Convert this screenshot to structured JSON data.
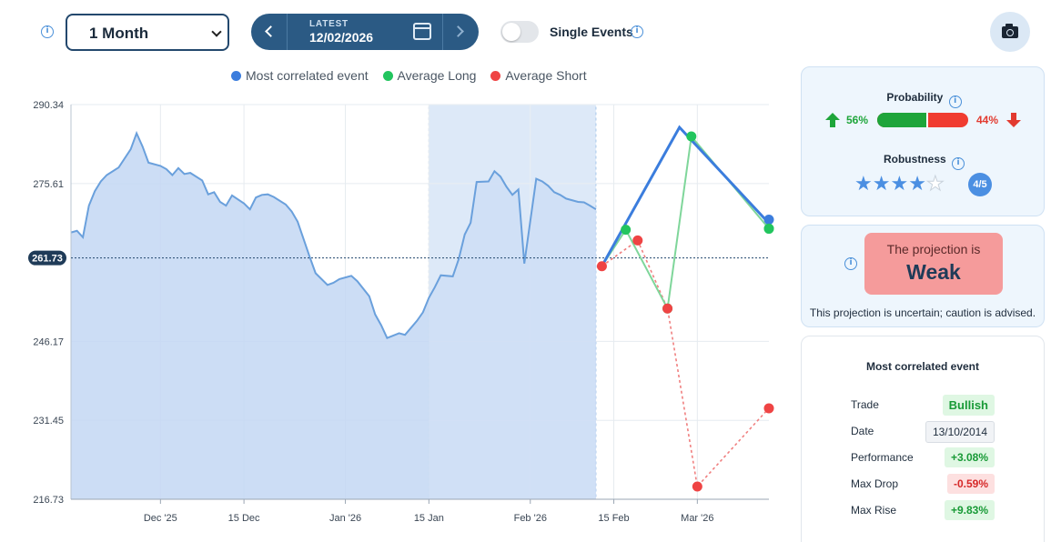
{
  "toolbar": {
    "period_value": "1 Month",
    "date_caption": "LATEST",
    "date_value": "12/02/2026",
    "single_events_label": "Single Events",
    "single_events_on": false
  },
  "legend": [
    {
      "label": "Most correlated event",
      "color": "#3b7ddd"
    },
    {
      "label": "Average Long",
      "color": "#22c55e"
    },
    {
      "label": "Average Short",
      "color": "#ef4444"
    }
  ],
  "chart_data": {
    "type": "line",
    "y_ticks": [
      "290.34",
      "275.61",
      "246.17",
      "231.45",
      "216.73"
    ],
    "y_tick_values": [
      290.34,
      275.61,
      246.17,
      231.45,
      216.73
    ],
    "ylim": [
      216.73,
      290.34
    ],
    "current_value": 261.73,
    "current_label": "261.73",
    "x_ticks": [
      "Dec '25",
      "15 Dec",
      "Jan '26",
      "15 Jan",
      "Feb '26",
      "15 Feb",
      "Mar '26"
    ],
    "x_tick_dates": [
      "2025-12-01",
      "2025-12-15",
      "2026-01-01",
      "2026-01-15",
      "2026-02-01",
      "2026-02-15",
      "2026-03-01"
    ],
    "highlight_range": [
      "2026-01-15",
      "2026-02-12"
    ],
    "grid": true,
    "history": {
      "name": "",
      "dates": [
        "2025-11-16",
        "2025-11-17",
        "2025-11-18",
        "2025-11-19",
        "2025-11-20",
        "2025-11-21",
        "2025-11-22",
        "2025-11-24",
        "2025-11-26",
        "2025-11-27",
        "2025-11-28",
        "2025-11-29",
        "2025-12-01",
        "2025-12-02",
        "2025-12-03",
        "2025-12-04",
        "2025-12-05",
        "2025-12-06",
        "2025-12-08",
        "2025-12-09",
        "2025-12-10",
        "2025-12-11",
        "2025-12-12",
        "2025-12-13",
        "2025-12-15",
        "2025-12-16",
        "2025-12-17",
        "2025-12-18",
        "2025-12-19",
        "2025-12-20",
        "2025-12-22",
        "2025-12-23",
        "2025-12-24",
        "2025-12-26",
        "2025-12-27",
        "2025-12-29",
        "2025-12-30",
        "2025-12-31",
        "2026-01-02",
        "2026-01-03",
        "2026-01-05",
        "2026-01-06",
        "2026-01-07",
        "2026-01-08",
        "2026-01-10",
        "2026-01-11",
        "2026-01-13",
        "2026-01-14",
        "2026-01-15",
        "2026-01-16",
        "2026-01-17",
        "2026-01-19",
        "2026-01-20",
        "2026-01-21",
        "2026-01-22",
        "2026-01-23",
        "2026-01-25",
        "2026-01-26",
        "2026-01-27",
        "2026-01-28",
        "2026-01-29",
        "2026-01-30",
        "2026-01-31",
        "2026-02-02",
        "2026-02-03",
        "2026-02-04",
        "2026-02-05",
        "2026-02-06",
        "2026-02-07",
        "2026-02-09",
        "2026-02-10",
        "2026-02-11",
        "2026-02-12"
      ],
      "values": [
        266.5,
        266.8,
        265.6,
        271.5,
        274.2,
        276.0,
        277.2,
        278.6,
        282.0,
        285.0,
        282.5,
        279.5,
        278.9,
        278.3,
        277.2,
        278.5,
        277.4,
        277.6,
        276.2,
        273.6,
        274.0,
        272.2,
        271.5,
        273.4,
        271.9,
        270.8,
        273.0,
        273.5,
        273.6,
        273.1,
        271.7,
        270.4,
        268.5,
        262.0,
        258.9,
        256.7,
        257.1,
        257.8,
        258.4,
        257.4,
        254.6,
        251.2,
        249.2,
        246.8,
        247.7,
        247.4,
        250.0,
        251.6,
        254.3,
        256.3,
        258.5,
        258.3,
        261.5,
        266.1,
        268.3,
        275.9,
        276.0,
        277.9,
        276.9,
        275.0,
        273.5,
        274.5,
        260.7,
        276.5,
        276.0,
        275.2,
        274.0,
        273.5,
        272.8,
        272.2,
        272.1,
        271.5,
        270.8
      ]
    },
    "projections": {
      "most_correlated": {
        "dates": [
          "2026-02-13",
          "2026-02-26",
          "2026-03-13"
        ],
        "values": [
          260.2,
          286.1,
          268.2
        ]
      },
      "average_long": {
        "dates": [
          "2026-02-13",
          "2026-02-17",
          "2026-02-24",
          "2026-02-28",
          "2026-03-13"
        ],
        "values": [
          260.2,
          267.0,
          252.3,
          284.4,
          267.2
        ]
      },
      "average_short": {
        "dates": [
          "2026-02-13",
          "2026-02-19",
          "2026-02-24",
          "2026-03-01",
          "2026-03-13"
        ],
        "values": [
          260.2,
          265.0,
          252.3,
          219.1,
          233.7
        ]
      }
    },
    "colors": {
      "area": "#c3d7f3",
      "highlight": "#d6e5f7",
      "history_line": "#6aa0dc",
      "most_correlated": "#3b7ddd",
      "long": "#22c55e",
      "short": "#ef4444"
    }
  },
  "probability": {
    "title": "Probability",
    "up_pct": "56%",
    "down_pct": "44%",
    "up_fraction": 0.56
  },
  "robustness": {
    "title": "Robustness",
    "score": 4,
    "max": 5,
    "badge": "4/5"
  },
  "projection": {
    "caption": "The projection is",
    "strength": "Weak",
    "note": "This projection is uncertain; caution is advised."
  },
  "correlated_event": {
    "title": "Most correlated event",
    "rows": [
      {
        "label": "Trade",
        "value": "Bullish",
        "style": "green bull"
      },
      {
        "label": "Date",
        "value": "13/10/2014",
        "style": "date"
      },
      {
        "label": "Performance",
        "value": "+3.08%",
        "style": "green"
      },
      {
        "label": "Max Drop",
        "value": "-0.59%",
        "style": "red"
      },
      {
        "label": "Max Rise",
        "value": "+9.83%",
        "style": "green"
      }
    ]
  }
}
